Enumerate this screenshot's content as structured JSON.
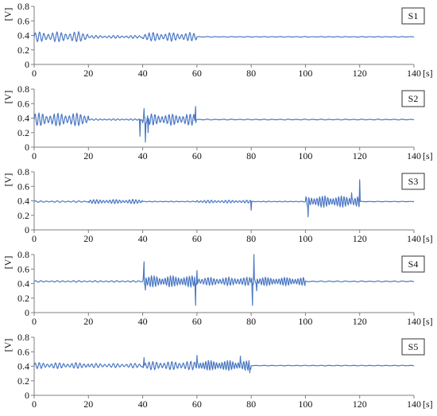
{
  "chart_data": [
    {
      "type": "line",
      "title": "S1",
      "ylabel": "[V]",
      "xunit": "[s]",
      "xlim": [
        0,
        140
      ],
      "ylim": [
        0,
        0.8
      ],
      "xticks": [
        "0",
        "20",
        "40",
        "60",
        "80",
        "100",
        "120",
        "140"
      ],
      "yticks": [
        "0",
        "0.2",
        "0.4",
        "0.6",
        "0.8"
      ],
      "baseline": 0.38,
      "segments": [
        {
          "x": [
            0,
            20
          ],
          "amplitude": 0.07,
          "period": 1.6
        },
        {
          "x": [
            20,
            40
          ],
          "amplitude": 0.02,
          "period": 1.6
        },
        {
          "x": [
            40,
            60
          ],
          "amplitude": 0.06,
          "period": 1.5
        },
        {
          "x": [
            60,
            140
          ],
          "amplitude": 0.004,
          "period": 3
        }
      ],
      "spikes": [],
      "series": [
        {
          "color": "#4a78c4"
        }
      ]
    },
    {
      "type": "line",
      "title": "S2",
      "ylabel": "[V]",
      "xunit": "[s]",
      "xlim": [
        0,
        140
      ],
      "ylim": [
        0,
        0.8
      ],
      "xticks": [
        "0",
        "20",
        "40",
        "60",
        "80",
        "100",
        "120",
        "140"
      ],
      "yticks": [
        "0",
        "0.2",
        "0.4",
        "0.6",
        "0.8"
      ],
      "baseline": 0.38,
      "segments": [
        {
          "x": [
            0,
            20
          ],
          "amplitude": 0.09,
          "period": 1.4
        },
        {
          "x": [
            20,
            40
          ],
          "amplitude": 0.01,
          "period": 1.6
        },
        {
          "x": [
            40,
            60
          ],
          "amplitude": 0.08,
          "period": 1.3
        },
        {
          "x": [
            60,
            140
          ],
          "amplitude": 0.005,
          "period": 3
        }
      ],
      "spikes": [
        {
          "x": 39,
          "y": 0.15
        },
        {
          "x": 40.5,
          "y": 0.53
        },
        {
          "x": 41,
          "y": 0.07
        },
        {
          "x": 42,
          "y": 0.2
        },
        {
          "x": 59.5,
          "y": 0.56
        }
      ],
      "series": [
        {
          "color": "#4a78c4"
        }
      ]
    },
    {
      "type": "line",
      "title": "S3",
      "ylabel": "[V]",
      "xunit": "[s]",
      "xlim": [
        0,
        140
      ],
      "ylim": [
        0,
        0.8
      ],
      "xticks": [
        "0",
        "20",
        "40",
        "60",
        "80",
        "100",
        "120",
        "140"
      ],
      "yticks": [
        "0",
        "0.2",
        "0.4",
        "0.6",
        "0.8"
      ],
      "baseline": 0.39,
      "segments": [
        {
          "x": [
            0,
            20
          ],
          "amplitude": 0.01,
          "period": 2
        },
        {
          "x": [
            20,
            40
          ],
          "amplitude": 0.03,
          "period": 1.2
        },
        {
          "x": [
            40,
            60
          ],
          "amplitude": 0.005,
          "period": 2
        },
        {
          "x": [
            60,
            80
          ],
          "amplitude": 0.02,
          "period": 1.3
        },
        {
          "x": [
            80,
            100
          ],
          "amplitude": 0.005,
          "period": 2
        },
        {
          "x": [
            100,
            120
          ],
          "amplitude": 0.08,
          "period": 1.0
        },
        {
          "x": [
            120,
            140
          ],
          "amplitude": 0.003,
          "period": 3
        }
      ],
      "spikes": [
        {
          "x": 80,
          "y": 0.27
        },
        {
          "x": 101,
          "y": 0.18
        },
        {
          "x": 117,
          "y": 0.51
        },
        {
          "x": 120,
          "y": 0.69
        }
      ],
      "series": [
        {
          "color": "#4a78c4"
        }
      ]
    },
    {
      "type": "line",
      "title": "S4",
      "ylabel": "[V]",
      "xunit": "[s]",
      "xlim": [
        0,
        140
      ],
      "ylim": [
        0,
        0.8
      ],
      "xticks": [
        "0",
        "20",
        "40",
        "60",
        "80",
        "100",
        "120",
        "140"
      ],
      "yticks": [
        "0",
        "0.2",
        "0.4",
        "0.6",
        "0.8"
      ],
      "baseline": 0.43,
      "segments": [
        {
          "x": [
            0,
            40
          ],
          "amplitude": 0.01,
          "period": 2
        },
        {
          "x": [
            40,
            60
          ],
          "amplitude": 0.08,
          "period": 1.0
        },
        {
          "x": [
            60,
            80
          ],
          "amplitude": 0.06,
          "period": 1.1
        },
        {
          "x": [
            80,
            100
          ],
          "amplitude": 0.06,
          "period": 1.0
        },
        {
          "x": [
            100,
            140
          ],
          "amplitude": 0.006,
          "period": 3
        }
      ],
      "spikes": [
        {
          "x": 40.5,
          "y": 0.7
        },
        {
          "x": 41,
          "y": 0.31
        },
        {
          "x": 59.5,
          "y": 0.1
        },
        {
          "x": 60,
          "y": 0.58
        },
        {
          "x": 80.5,
          "y": 0.1
        },
        {
          "x": 81,
          "y": 0.8
        },
        {
          "x": 82,
          "y": 0.3
        }
      ],
      "series": [
        {
          "color": "#4a78c4"
        }
      ]
    },
    {
      "type": "line",
      "title": "S5",
      "ylabel": "[V]",
      "xunit": "[s]",
      "xlim": [
        0,
        140
      ],
      "ylim": [
        0,
        0.8
      ],
      "xticks": [
        "0",
        "20",
        "40",
        "60",
        "80",
        "100",
        "120",
        "140"
      ],
      "yticks": [
        "0",
        "0.2",
        "0.4",
        "0.6",
        "0.8"
      ],
      "baseline": 0.41,
      "segments": [
        {
          "x": [
            0,
            20
          ],
          "amplitude": 0.04,
          "period": 1.5
        },
        {
          "x": [
            20,
            40
          ],
          "amplitude": 0.03,
          "period": 1.6
        },
        {
          "x": [
            40,
            60
          ],
          "amplitude": 0.06,
          "period": 1.4
        },
        {
          "x": [
            60,
            80
          ],
          "amplitude": 0.07,
          "period": 1.0
        },
        {
          "x": [
            80,
            140
          ],
          "amplitude": 0.004,
          "period": 3
        }
      ],
      "spikes": [
        {
          "x": 40.5,
          "y": 0.52
        },
        {
          "x": 60,
          "y": 0.55
        },
        {
          "x": 76,
          "y": 0.54
        },
        {
          "x": 79.5,
          "y": 0.31
        }
      ],
      "series": [
        {
          "color": "#4a78c4"
        }
      ]
    }
  ]
}
